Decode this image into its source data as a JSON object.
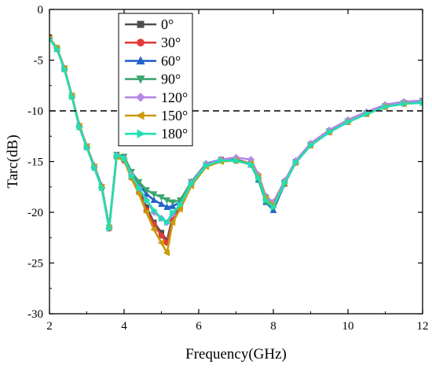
{
  "chart_data": {
    "type": "line",
    "xlabel": "Frequency(GHz)",
    "ylabel": "Tarc(dB)",
    "xlim": [
      2,
      12
    ],
    "ylim": [
      -30,
      0
    ],
    "xticks": [
      2,
      4,
      6,
      8,
      10,
      12
    ],
    "yticks": [
      0,
      -5,
      -10,
      -15,
      -20,
      -25,
      -30
    ],
    "grid": false,
    "legend_position": "top-left",
    "reference_line": {
      "y": -10,
      "style": "dashed",
      "color": "#000000"
    },
    "x": [
      2.0,
      2.2,
      2.4,
      2.6,
      2.8,
      3.0,
      3.2,
      3.4,
      3.6,
      3.8,
      4.0,
      4.2,
      4.4,
      4.6,
      4.8,
      5.0,
      5.15,
      5.3,
      5.5,
      5.8,
      6.2,
      6.6,
      7.0,
      7.4,
      7.6,
      7.8,
      8.0,
      8.3,
      8.6,
      9.0,
      9.5,
      10.0,
      10.5,
      11.0,
      11.5,
      12.0
    ],
    "series": [
      {
        "name": "0°",
        "color": "#4d4d4d",
        "marker": "square",
        "values": [
          -2.8,
          -3.8,
          -5.8,
          -8.5,
          -11.5,
          -13.5,
          -15.5,
          -17.5,
          -21.5,
          -14.5,
          -14.8,
          -16.5,
          -17.8,
          -19.5,
          -21.0,
          -22.0,
          -22.8,
          -20.5,
          -19.5,
          -17.2,
          -15.3,
          -14.8,
          -14.8,
          -15.2,
          -16.5,
          -18.5,
          -19.2,
          -17.0,
          -15.0,
          -13.3,
          -12.0,
          -11.0,
          -10.2,
          -9.5,
          -9.2,
          -9.0
        ]
      },
      {
        "name": "30°",
        "color": "#e33a3a",
        "marker": "circle",
        "values": [
          -2.8,
          -3.9,
          -5.9,
          -8.6,
          -11.6,
          -13.6,
          -15.6,
          -17.6,
          -21.6,
          -14.5,
          -14.9,
          -16.6,
          -18.0,
          -19.8,
          -21.2,
          -22.3,
          -23.0,
          -20.8,
          -19.6,
          -17.3,
          -15.4,
          -14.9,
          -14.9,
          -15.3,
          -16.7,
          -18.7,
          -19.3,
          -17.1,
          -15.1,
          -13.4,
          -12.1,
          -11.1,
          -10.3,
          -9.6,
          -9.3,
          -9.1
        ]
      },
      {
        "name": "60°",
        "color": "#2362c9",
        "marker": "triangle-up",
        "values": [
          -2.9,
          -3.9,
          -5.8,
          -8.5,
          -11.4,
          -13.5,
          -15.4,
          -17.4,
          -21.4,
          -14.4,
          -14.6,
          -16.2,
          -17.2,
          -18.2,
          -18.8,
          -19.2,
          -19.5,
          -19.4,
          -19.0,
          -17.0,
          -15.2,
          -14.8,
          -14.8,
          -15.3,
          -16.8,
          -19.0,
          -19.8,
          -17.2,
          -15.0,
          -13.2,
          -11.9,
          -10.9,
          -10.1,
          -9.4,
          -9.1,
          -9.0
        ]
      },
      {
        "name": "90°",
        "color": "#3aa66e",
        "marker": "triangle-down",
        "values": [
          -2.9,
          -3.9,
          -5.8,
          -8.5,
          -11.5,
          -13.5,
          -15.5,
          -17.5,
          -21.5,
          -14.3,
          -14.5,
          -16.0,
          -17.0,
          -17.8,
          -18.2,
          -18.5,
          -18.8,
          -19.0,
          -18.8,
          -17.0,
          -15.3,
          -14.9,
          -14.9,
          -15.3,
          -16.8,
          -19.0,
          -19.5,
          -17.2,
          -15.1,
          -13.3,
          -12.0,
          -11.0,
          -10.2,
          -9.5,
          -9.2,
          -9.1
        ]
      },
      {
        "name": "120°",
        "color": "#b487e6",
        "marker": "diamond",
        "values": [
          -2.8,
          -3.8,
          -5.8,
          -8.5,
          -11.5,
          -13.5,
          -15.5,
          -17.5,
          -21.5,
          -14.4,
          -14.7,
          -16.3,
          -17.6,
          -18.8,
          -20.0,
          -20.6,
          -21.0,
          -20.2,
          -19.3,
          -17.1,
          -15.3,
          -14.8,
          -14.6,
          -14.8,
          -16.3,
          -18.4,
          -19.0,
          -16.9,
          -14.9,
          -13.2,
          -11.9,
          -10.9,
          -10.1,
          -9.4,
          -9.1,
          -9.0
        ]
      },
      {
        "name": "150°",
        "color": "#c99a0b",
        "marker": "triangle-left",
        "values": [
          -2.8,
          -3.8,
          -5.8,
          -8.5,
          -11.5,
          -13.5,
          -15.5,
          -17.5,
          -21.5,
          -14.5,
          -14.9,
          -16.7,
          -18.2,
          -20.0,
          -21.7,
          -23.0,
          -24.0,
          -21.0,
          -19.7,
          -17.4,
          -15.5,
          -15.0,
          -14.9,
          -15.2,
          -16.5,
          -18.6,
          -19.3,
          -17.1,
          -15.1,
          -13.4,
          -12.1,
          -11.1,
          -10.3,
          -9.6,
          -9.3,
          -9.2
        ]
      },
      {
        "name": "180°",
        "color": "#1ee0b4",
        "marker": "triangle-right",
        "values": [
          -2.9,
          -3.9,
          -5.9,
          -8.6,
          -11.6,
          -13.6,
          -15.6,
          -17.6,
          -21.6,
          -14.4,
          -14.7,
          -16.4,
          -17.6,
          -18.8,
          -19.8,
          -20.6,
          -21.0,
          -20.0,
          -19.3,
          -17.2,
          -15.4,
          -14.9,
          -14.9,
          -15.3,
          -16.6,
          -18.8,
          -19.5,
          -17.1,
          -15.1,
          -13.4,
          -12.1,
          -11.1,
          -10.3,
          -9.6,
          -9.3,
          -9.2
        ]
      }
    ]
  }
}
